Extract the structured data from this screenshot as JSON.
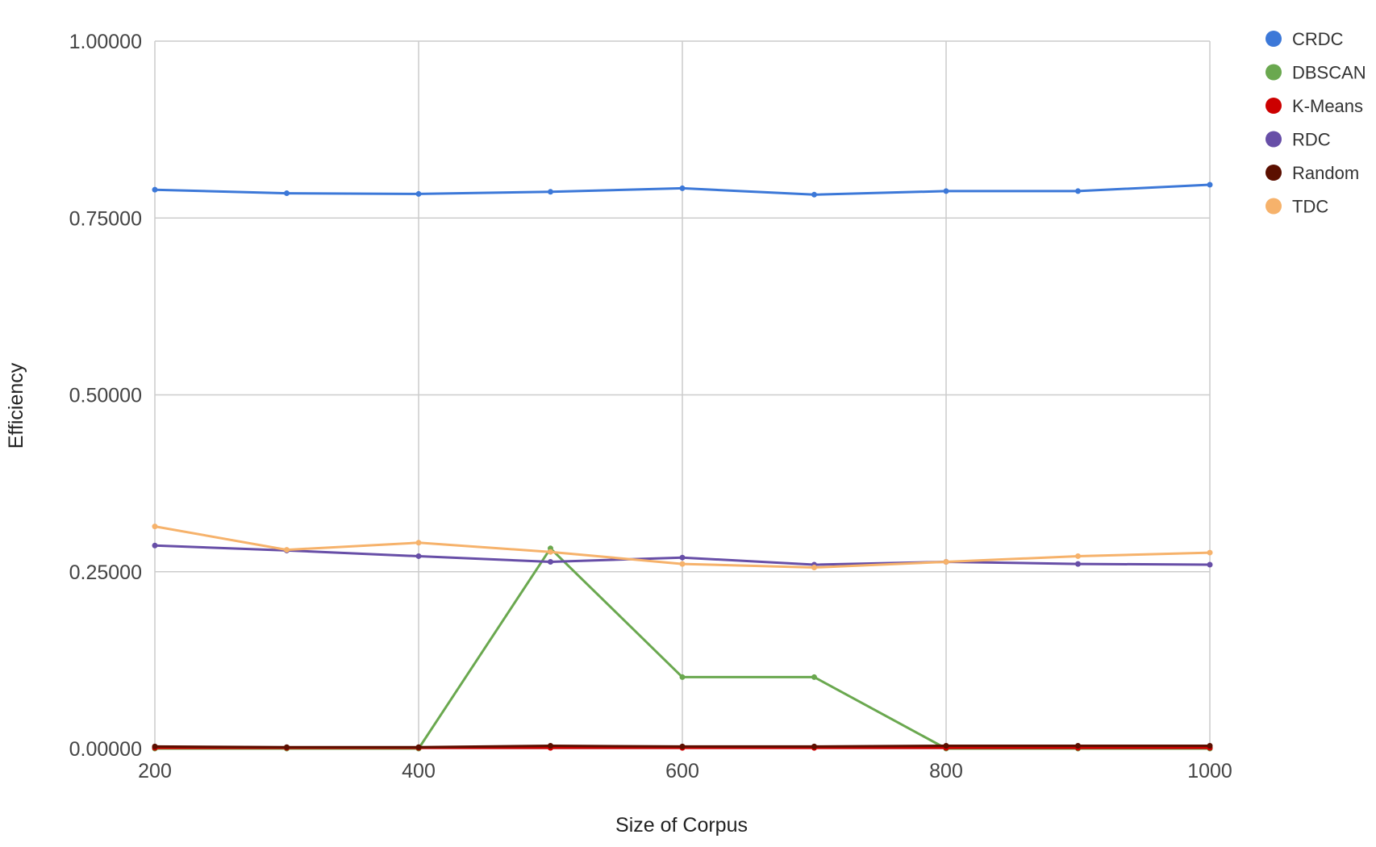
{
  "chart_data": {
    "type": "line",
    "title": "",
    "xlabel": "Size of Corpus",
    "ylabel": "Efficiency",
    "x": [
      200,
      300,
      400,
      500,
      600,
      700,
      800,
      900,
      1000
    ],
    "xlim": [
      200,
      1000
    ],
    "ylim": [
      0,
      1
    ],
    "x_ticks": [
      200,
      400,
      600,
      800,
      1000
    ],
    "y_ticks": [
      0,
      0.25,
      0.5,
      0.75,
      1
    ],
    "x_tick_labels": [
      "200",
      "400",
      "600",
      "800",
      "1000"
    ],
    "y_tick_labels": [
      "0.00000",
      "0.25000",
      "0.50000",
      "0.75000",
      "1.00000"
    ],
    "grid": true,
    "legend_position": "top-right",
    "series": [
      {
        "name": "CRDC",
        "color": "#3c78d8",
        "values": [
          0.79,
          0.785,
          0.784,
          0.787,
          0.792,
          0.783,
          0.788,
          0.788,
          0.797
        ]
      },
      {
        "name": "DBSCAN",
        "color": "#6aa84f",
        "values": [
          0.0,
          0.0,
          0.0,
          0.283,
          0.101,
          0.101,
          0.0,
          0.0,
          0.0
        ]
      },
      {
        "name": "K-Means",
        "color": "#cc0000",
        "values": [
          0.001,
          0.001,
          0.001,
          0.001,
          0.001,
          0.001,
          0.001,
          0.001,
          0.001
        ]
      },
      {
        "name": "RDC",
        "color": "#674ea7",
        "values": [
          0.287,
          0.28,
          0.272,
          0.264,
          0.27,
          0.26,
          0.264,
          0.261,
          0.26
        ]
      },
      {
        "name": "Random",
        "color": "#5b0f00",
        "values": [
          0.003,
          0.002,
          0.002,
          0.004,
          0.003,
          0.003,
          0.004,
          0.004,
          0.004
        ]
      },
      {
        "name": "TDC",
        "color": "#f6b26b",
        "values": [
          0.314,
          0.281,
          0.291,
          0.278,
          0.261,
          0.256,
          0.264,
          0.272,
          0.277
        ]
      }
    ]
  }
}
